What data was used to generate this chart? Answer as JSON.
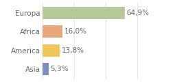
{
  "categories": [
    "Europa",
    "Africa",
    "America",
    "Asia"
  ],
  "values": [
    64.9,
    16.0,
    13.8,
    5.3
  ],
  "labels": [
    "64,9%",
    "16,0%",
    "13,8%",
    "5,3%"
  ],
  "bar_colors": [
    "#b5c99a",
    "#e8a87c",
    "#f0c85a",
    "#7b8fc4"
  ],
  "background_color": "#ffffff",
  "xlim": [
    0,
    100
  ],
  "bar_height": 0.65,
  "label_fontsize": 7.5,
  "category_fontsize": 7.5,
  "grid_color": "#dddddd",
  "text_color": "#666666",
  "grid_positions": [
    0,
    25,
    50,
    75,
    100
  ]
}
